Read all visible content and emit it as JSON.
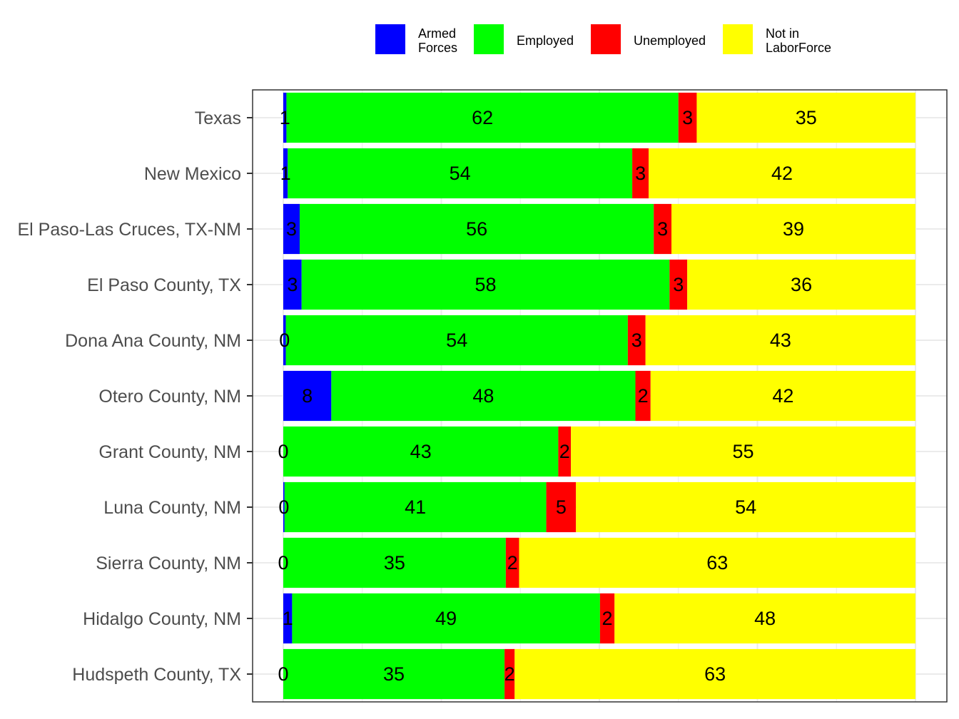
{
  "legend": {
    "items": [
      {
        "key": "armed",
        "label": "Armed\nForces",
        "color": "#0000FF"
      },
      {
        "key": "employed",
        "label": "Employed",
        "color": "#00FF00"
      },
      {
        "key": "unemployed",
        "label": "Unemployed",
        "color": "#FF0000"
      },
      {
        "key": "nilf",
        "label": "Not in\nLaborForce",
        "color": "#FFFF00"
      }
    ]
  },
  "chart_data": {
    "type": "bar",
    "orientation": "horizontal",
    "stacked": true,
    "xlim": [
      0,
      100
    ],
    "grid": true,
    "legend_position": "top",
    "categories": [
      "Texas",
      "New Mexico",
      "El Paso-Las Cruces, TX-NM",
      "El Paso County, TX",
      "Dona Ana County, NM",
      "Otero County, NM",
      "Grant County, NM",
      "Luna County, NM",
      "Sierra County, NM",
      "Hidalgo County, NM",
      "Hudspeth County, TX"
    ],
    "series": [
      {
        "name": "Armed Forces",
        "color": "#0000FF",
        "values": [
          0.5,
          0.7,
          2.6,
          2.9,
          0.4,
          7.6,
          0,
          0.2,
          0,
          1.4,
          0
        ],
        "labels": [
          "1",
          "1",
          "3",
          "3",
          "0",
          "8",
          "0",
          "0",
          "0",
          "1",
          "0"
        ]
      },
      {
        "name": "Employed",
        "color": "#00FF00",
        "values": [
          62,
          54.5,
          56,
          58.2,
          54.1,
          48.1,
          43.5,
          41.4,
          35.2,
          48.7,
          35
        ],
        "labels": [
          "62",
          "54",
          "56",
          "58",
          "54",
          "48",
          "43",
          "41",
          "35",
          "49",
          "35"
        ]
      },
      {
        "name": "Unemployed",
        "color": "#FF0000",
        "values": [
          2.9,
          2.6,
          2.8,
          2.8,
          2.8,
          2.4,
          2,
          4.7,
          2.1,
          2.3,
          1.6
        ],
        "labels": [
          "3",
          "3",
          "3",
          "3",
          "3",
          "2",
          "2",
          "5",
          "2",
          "2",
          "2"
        ]
      },
      {
        "name": "Not in LaborForce",
        "color": "#FFFF00",
        "values": [
          34.6,
          42.2,
          38.6,
          36.1,
          42.7,
          41.9,
          54.5,
          53.7,
          62.7,
          47.6,
          63.4
        ],
        "labels": [
          "35",
          "42",
          "39",
          "36",
          "43",
          "42",
          "55",
          "54",
          "63",
          "48",
          "63"
        ]
      }
    ]
  }
}
